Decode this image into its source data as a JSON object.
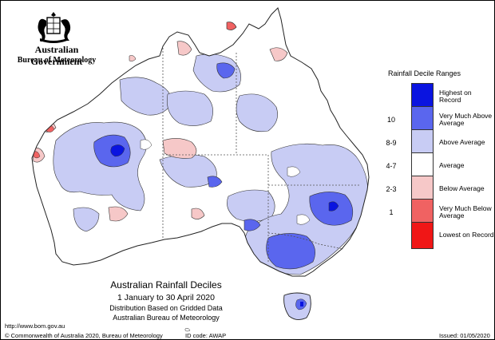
{
  "header": {
    "org_name": "Australian Government",
    "org_sub": "Bureau of Meteorology"
  },
  "legend": {
    "title": "Rainfall Decile Ranges",
    "rows": [
      {
        "decile": "",
        "label": "Highest on Record",
        "color": "#0a14e0"
      },
      {
        "decile": "10",
        "label": "Very Much Above Average",
        "color": "#5a66ee"
      },
      {
        "decile": "8-9",
        "label": "Above Average",
        "color": "#c8ccf4"
      },
      {
        "decile": "4-7",
        "label": "Average",
        "color": "#ffffff"
      },
      {
        "decile": "2-3",
        "label": "Below Average",
        "color": "#f6c8c8"
      },
      {
        "decile": "1",
        "label": "Very Much Below Average",
        "color": "#f06262"
      },
      {
        "decile": "",
        "label": "Lowest on Record",
        "color": "#f01616"
      }
    ]
  },
  "caption": {
    "title": "Australian Rainfall Deciles",
    "period": "1 January to 30 April 2020",
    "line3": "Distribution Based on Gridded Data",
    "line4": "Australian Bureau of Meteorology"
  },
  "footer": {
    "url": "http://www.bom.gov.au",
    "copyright": "© Commonwealth of Australia 2020, Bureau of Meteorology",
    "id_code": "ID code: AWAP",
    "issued": "Issued: 01/05/2020"
  },
  "map_colors": {
    "outline": "#222222",
    "above": "#c8ccf4",
    "very_above": "#5a66ee",
    "highest": "#0a14e0",
    "below": "#f6c8c8",
    "very_below": "#f06262",
    "lowest": "#f01616"
  }
}
